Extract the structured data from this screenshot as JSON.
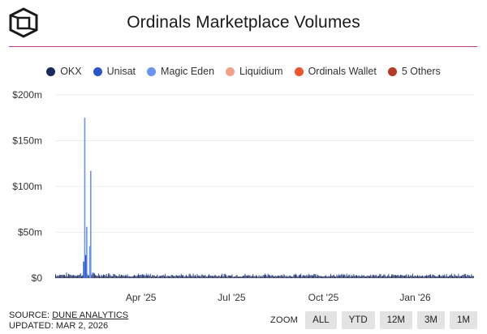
{
  "page": {
    "title": "Ordinals Marketplace Volumes",
    "source_label": "SOURCE:",
    "source_name": "DUNE ANALYTICS",
    "updated": "UPDATED: MAR 2, 2026",
    "zoom_label": "ZOOM",
    "zoom_buttons": [
      "ALL",
      "YTD",
      "12M",
      "3M",
      "1M"
    ]
  },
  "colors": {
    "accent_rule": "#c23b8e",
    "zoom_bg": "#e3e3e3"
  },
  "chart_data": {
    "type": "bar",
    "stacked": true,
    "title": "Ordinals Marketplace Volumes",
    "ylim": [
      0,
      200
    ],
    "yticks": [
      0,
      50,
      100,
      150,
      200
    ],
    "ytick_labels": [
      "$0",
      "$50m",
      "$100m",
      "$150m",
      "$200m"
    ],
    "x_range_days": [
      0,
      420
    ],
    "xticks": [
      {
        "day": 86,
        "label": "Apr '25"
      },
      {
        "day": 177,
        "label": "Jul '25"
      },
      {
        "day": 269,
        "label": "Oct '25"
      },
      {
        "day": 361,
        "label": "Jan '26"
      }
    ],
    "legend_position": "top-center",
    "series": [
      {
        "name": "OKX",
        "color": "#1b2a5c"
      },
      {
        "name": "Unisat",
        "color": "#2a55c8"
      },
      {
        "name": "Magic Eden",
        "color": "#6b93f0"
      },
      {
        "name": "Liquidium",
        "color": "#f3a089"
      },
      {
        "name": "Ordinals Wallet",
        "color": "#f0542c"
      },
      {
        "name": "5 Others",
        "color": "#b73a26"
      }
    ],
    "notable_values_musd": [
      {
        "day": 29,
        "series": "Magic Eden",
        "value": 175
      },
      {
        "day": 35,
        "series": "Magic Eden",
        "value": 117
      },
      {
        "day": 31,
        "series": "Magic Eden",
        "value": 56
      },
      {
        "day": 34,
        "series": "Magic Eden",
        "value": 35
      },
      {
        "day": 30,
        "series": "Unisat",
        "value": 25
      },
      {
        "day": 28,
        "series": "Unisat",
        "value": 18
      }
    ],
    "baseline_daily_volume_musd": 3
  }
}
